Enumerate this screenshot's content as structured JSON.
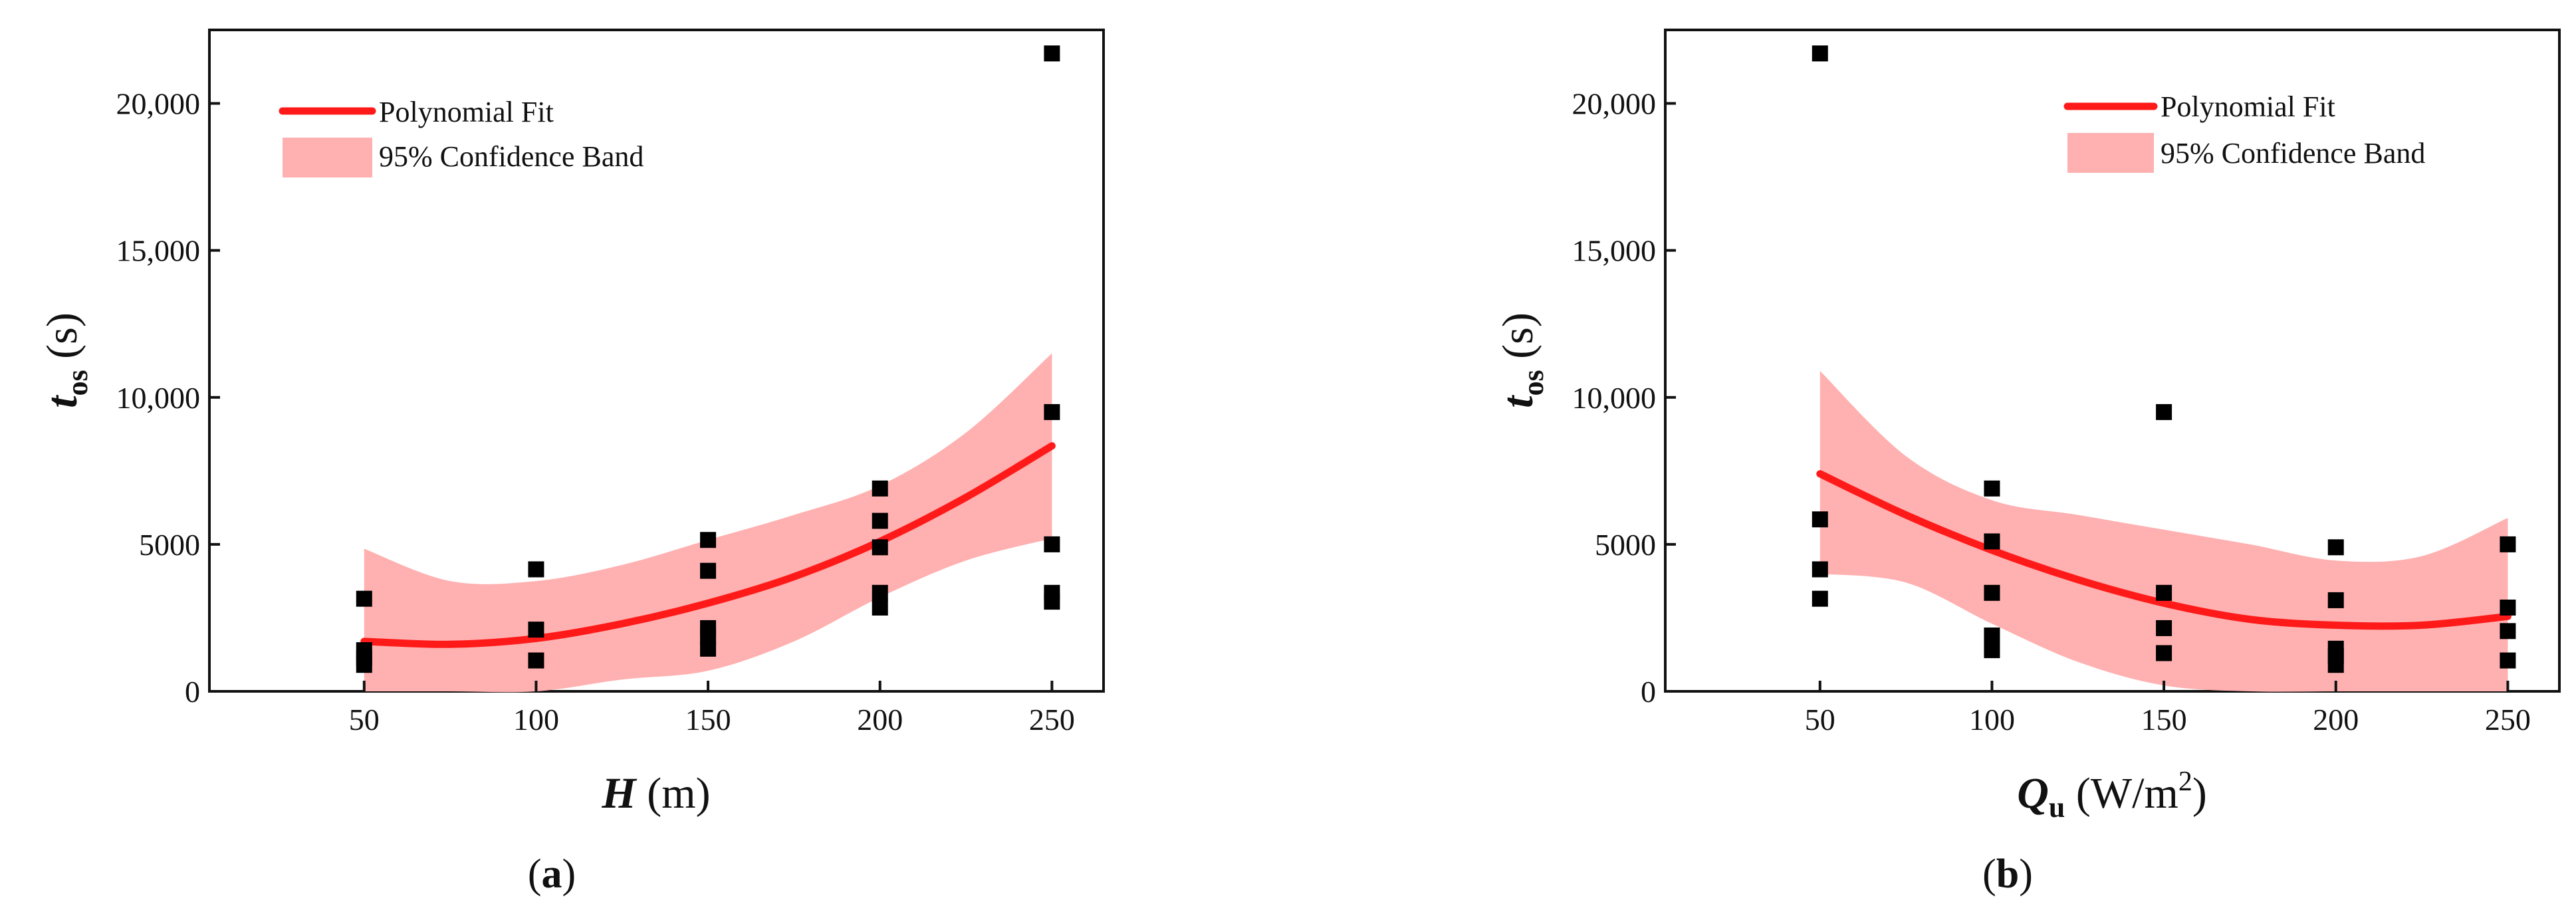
{
  "chart_data": [
    {
      "panel_label": "a",
      "type": "scatter",
      "xlabel": {
        "var": "H",
        "unit": "(m)"
      },
      "ylabel": {
        "var": "t",
        "sub": "os",
        "unit": "(s)"
      },
      "xlim": [
        5,
        265
      ],
      "ylim": [
        0,
        22500
      ],
      "xticks": [
        50,
        100,
        150,
        200,
        250
      ],
      "yticks": [
        0,
        5000,
        10000,
        15000,
        20000
      ],
      "ytick_labels": [
        "0",
        "5000",
        "10,000",
        "15,000",
        "20,000"
      ],
      "legend": {
        "fit": "Polynomial Fit",
        "band": "95% Confidence Band"
      },
      "colors": {
        "fit": "#ff1a1a",
        "band": "#ffb0b0",
        "points": "#000000"
      },
      "points": [
        [
          50,
          3150
        ],
        [
          50,
          1400
        ],
        [
          50,
          1150
        ],
        [
          50,
          900
        ],
        [
          100,
          4150
        ],
        [
          100,
          2100
        ],
        [
          100,
          1050
        ],
        [
          150,
          5150
        ],
        [
          150,
          4100
        ],
        [
          150,
          2150
        ],
        [
          150,
          1850
        ],
        [
          150,
          1450
        ],
        [
          200,
          6900
        ],
        [
          200,
          5800
        ],
        [
          200,
          4900
        ],
        [
          200,
          3350
        ],
        [
          200,
          2850
        ],
        [
          250,
          21700
        ],
        [
          250,
          9500
        ],
        [
          250,
          5000
        ],
        [
          250,
          3350
        ],
        [
          250,
          3050
        ]
      ],
      "fit": [
        [
          50,
          1700
        ],
        [
          75,
          1600
        ],
        [
          100,
          1800
        ],
        [
          125,
          2300
        ],
        [
          150,
          3000
        ],
        [
          175,
          3900
        ],
        [
          200,
          5100
        ],
        [
          225,
          6600
        ],
        [
          250,
          8350
        ]
      ],
      "band_upper": [
        [
          50,
          4850
        ],
        [
          75,
          3750
        ],
        [
          100,
          3750
        ],
        [
          125,
          4300
        ],
        [
          150,
          5150
        ],
        [
          175,
          6000
        ],
        [
          200,
          7000
        ],
        [
          225,
          8800
        ],
        [
          250,
          11500
        ]
      ],
      "band_lower": [
        [
          50,
          0
        ],
        [
          75,
          0
        ],
        [
          100,
          0
        ],
        [
          125,
          400
        ],
        [
          150,
          700
        ],
        [
          175,
          1700
        ],
        [
          200,
          3200
        ],
        [
          225,
          4450
        ],
        [
          250,
          5200
        ]
      ]
    },
    {
      "panel_label": "b",
      "type": "scatter",
      "xlabel": {
        "var": "Q",
        "sub": "u",
        "unit": "(W/m",
        "sup": "2",
        "unit_end": ")"
      },
      "ylabel": {
        "var": "t",
        "sub": "os",
        "unit": "(s)"
      },
      "xlim": [
        5,
        265
      ],
      "ylim": [
        0,
        22500
      ],
      "xticks": [
        50,
        100,
        150,
        200,
        250
      ],
      "yticks": [
        0,
        5000,
        10000,
        15000,
        20000
      ],
      "ytick_labels": [
        "0",
        "5000",
        "10,000",
        "15,000",
        "20,000"
      ],
      "legend": {
        "fit": "Polynomial Fit",
        "band": "95% Confidence Band"
      },
      "colors": {
        "fit": "#ff1a1a",
        "band": "#ffb0b0",
        "points": "#000000"
      },
      "points": [
        [
          50,
          21700
        ],
        [
          50,
          5850
        ],
        [
          50,
          4150
        ],
        [
          50,
          3150
        ],
        [
          100,
          6900
        ],
        [
          100,
          5100
        ],
        [
          100,
          3350
        ],
        [
          100,
          1900
        ],
        [
          100,
          1400
        ],
        [
          150,
          9500
        ],
        [
          150,
          3350
        ],
        [
          150,
          2150
        ],
        [
          150,
          1300
        ],
        [
          200,
          4900
        ],
        [
          200,
          3100
        ],
        [
          200,
          1450
        ],
        [
          200,
          1200
        ],
        [
          200,
          900
        ],
        [
          250,
          5000
        ],
        [
          250,
          2850
        ],
        [
          250,
          2050
        ],
        [
          250,
          1050
        ]
      ],
      "fit": [
        [
          50,
          7400
        ],
        [
          75,
          6000
        ],
        [
          100,
          4800
        ],
        [
          125,
          3800
        ],
        [
          150,
          3000
        ],
        [
          175,
          2450
        ],
        [
          200,
          2250
        ],
        [
          225,
          2250
        ],
        [
          250,
          2550
        ]
      ],
      "band_upper": [
        [
          50,
          10900
        ],
        [
          75,
          8000
        ],
        [
          100,
          6500
        ],
        [
          125,
          6000
        ],
        [
          150,
          5500
        ],
        [
          175,
          5000
        ],
        [
          200,
          4450
        ],
        [
          225,
          4600
        ],
        [
          250,
          5900
        ]
      ],
      "band_lower": [
        [
          50,
          4000
        ],
        [
          75,
          3700
        ],
        [
          100,
          2300
        ],
        [
          125,
          1000
        ],
        [
          150,
          200
        ],
        [
          175,
          0
        ],
        [
          200,
          0
        ],
        [
          225,
          0
        ],
        [
          250,
          0
        ]
      ]
    }
  ]
}
